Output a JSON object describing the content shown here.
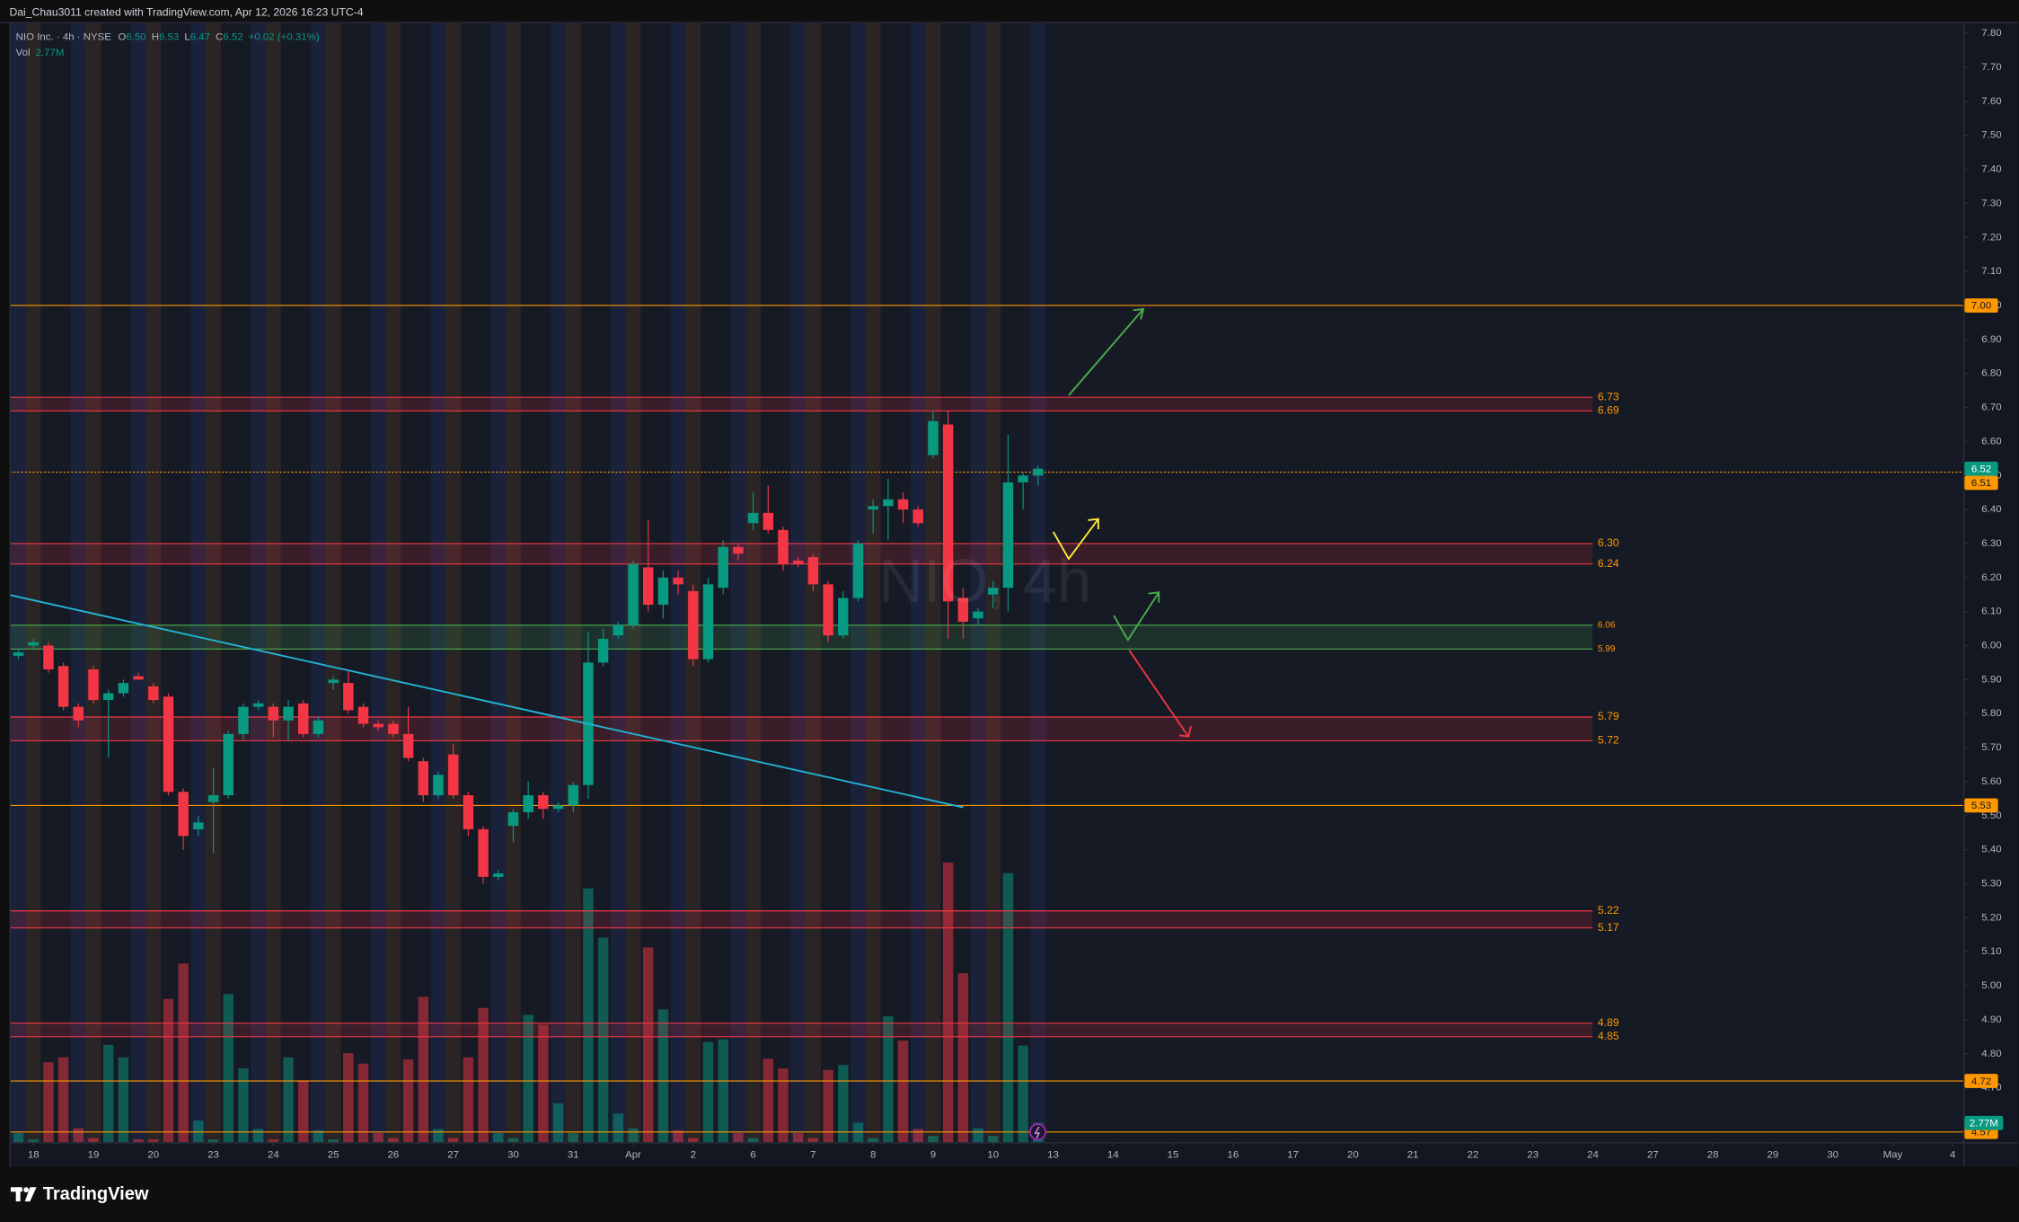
{
  "chart_data": {
    "type": "candlestick",
    "credit": "Dai_Chau3011 created with TradingView.com, Apr 12, 2026 16:23 UTC-4",
    "symbol": "NIO Inc. · 4h · NYSE",
    "legend": [
      {
        "key": "O",
        "value": "6.50"
      },
      {
        "key": "H",
        "value": "6.53"
      },
      {
        "key": "L",
        "value": "6.47"
      },
      {
        "key": "C",
        "value": "6.52"
      }
    ],
    "change": "+0.02 (+0.31%)",
    "volume_legend": {
      "key": "Vol",
      "value": "2.77M"
    },
    "watermark": "NIO, 4h",
    "brand": "TradingView",
    "up_color": "#089981",
    "down_color": "#f23645",
    "x": [
      0,
      1,
      2,
      3,
      4,
      5,
      6,
      7,
      8,
      9,
      10,
      11,
      12,
      13,
      14,
      15,
      16,
      17,
      18,
      19,
      20,
      21,
      22,
      23,
      24,
      25,
      26,
      27,
      28,
      29,
      30,
      31,
      32,
      33,
      34,
      35,
      36,
      37,
      38,
      39,
      40,
      41,
      42,
      43,
      44,
      45,
      46,
      47,
      48,
      49,
      50,
      51,
      52,
      53,
      54,
      55,
      56,
      57,
      58,
      59,
      60,
      61,
      62,
      63,
      64,
      65,
      66,
      67,
      68
    ],
    "open": [
      5.97,
      6.0,
      6.0,
      5.94,
      5.82,
      5.93,
      5.84,
      5.86,
      5.91,
      5.88,
      5.85,
      5.57,
      5.46,
      5.54,
      5.56,
      5.74,
      5.82,
      5.82,
      5.78,
      5.83,
      5.74,
      5.89,
      5.89,
      5.82,
      5.77,
      5.77,
      5.74,
      5.66,
      5.56,
      5.68,
      5.56,
      5.46,
      5.32,
      5.47,
      5.51,
      5.56,
      5.52,
      5.53,
      5.59,
      5.95,
      6.03,
      6.06,
      6.23,
      6.12,
      6.2,
      6.16,
      5.96,
      6.17,
      6.29,
      6.36,
      6.39,
      6.34,
      6.25,
      6.26,
      6.18,
      6.03,
      6.14,
      6.4,
      6.41,
      6.43,
      6.4,
      6.56,
      6.65,
      6.14,
      6.08,
      6.15,
      6.17,
      6.48,
      6.5
    ],
    "high": [
      5.99,
      6.02,
      6.01,
      5.95,
      5.83,
      5.94,
      5.87,
      5.9,
      5.92,
      5.89,
      5.86,
      5.58,
      5.5,
      5.64,
      5.75,
      5.83,
      5.84,
      5.83,
      5.84,
      5.84,
      5.79,
      5.91,
      5.93,
      5.83,
      5.78,
      5.78,
      5.82,
      5.67,
      5.63,
      5.71,
      5.57,
      5.47,
      5.34,
      5.52,
      5.6,
      5.57,
      5.54,
      5.6,
      6.04,
      6.05,
      6.07,
      6.25,
      6.37,
      6.22,
      6.22,
      6.18,
      6.2,
      6.31,
      6.3,
      6.45,
      6.47,
      6.35,
      6.26,
      6.27,
      6.19,
      6.16,
      6.31,
      6.43,
      6.49,
      6.45,
      6.41,
      6.69,
      6.69,
      6.17,
      6.11,
      6.19,
      6.62,
      6.51,
      6.53
    ],
    "low": [
      5.96,
      5.99,
      5.92,
      5.81,
      5.76,
      5.83,
      5.67,
      5.85,
      5.9,
      5.83,
      5.56,
      5.4,
      5.44,
      5.39,
      5.55,
      5.72,
      5.81,
      5.73,
      5.72,
      5.73,
      5.73,
      5.87,
      5.8,
      5.76,
      5.75,
      5.73,
      5.66,
      5.54,
      5.55,
      5.55,
      5.44,
      5.3,
      5.31,
      5.42,
      5.49,
      5.49,
      5.51,
      5.51,
      5.55,
      5.94,
      6.02,
      6.05,
      6.1,
      6.08,
      6.15,
      5.94,
      5.95,
      6.15,
      6.25,
      6.34,
      6.33,
      6.22,
      6.23,
      6.16,
      6.01,
      6.02,
      6.13,
      6.33,
      6.31,
      6.36,
      6.35,
      6.55,
      6.02,
      6.02,
      6.06,
      6.11,
      6.1,
      6.4,
      6.47
    ],
    "close": [
      5.98,
      6.01,
      5.93,
      5.82,
      5.78,
      5.84,
      5.86,
      5.89,
      5.9,
      5.84,
      5.57,
      5.44,
      5.48,
      5.56,
      5.74,
      5.82,
      5.83,
      5.78,
      5.82,
      5.74,
      5.78,
      5.9,
      5.81,
      5.77,
      5.76,
      5.74,
      5.67,
      5.56,
      5.62,
      5.56,
      5.46,
      5.32,
      5.33,
      5.51,
      5.56,
      5.52,
      5.53,
      5.59,
      5.95,
      6.02,
      6.06,
      6.24,
      6.12,
      6.2,
      6.18,
      5.96,
      6.18,
      6.29,
      6.27,
      6.39,
      6.34,
      6.24,
      6.24,
      6.18,
      6.03,
      6.14,
      6.3,
      6.41,
      6.43,
      6.4,
      6.36,
      6.66,
      6.13,
      6.07,
      6.1,
      6.17,
      6.48,
      6.5,
      6.52
    ],
    "volume": [
      1.3,
      0.4,
      11.5,
      12.2,
      2,
      0.6,
      14,
      12.2,
      0.4,
      0.4,
      20.6,
      25.7,
      3.1,
      0.4,
      21.3,
      10.6,
      1.9,
      0.4,
      12.2,
      8.9,
      1.7,
      0.4,
      12.8,
      11.3,
      1.3,
      0.6,
      11.9,
      20.9,
      1.9,
      0.6,
      12.2,
      19.3,
      1.3,
      0.6,
      18.3,
      16.9,
      5.6,
      1.3,
      36.5,
      29.4,
      4.1,
      2,
      28,
      19.1,
      1.7,
      0.6,
      14.4,
      14.8,
      1.3,
      0.6,
      12,
      10.6,
      1.3,
      0.6,
      10.4,
      11.1,
      2.8,
      0.6,
      18.1,
      14.6,
      1.9,
      0.9,
      40.2,
      24.3,
      2,
      0.9,
      38.7,
      13.9,
      2.77
    ],
    "xlim": [
      -0.6,
      129.7
    ],
    "xticks": [
      {
        "value": 1,
        "label": "18"
      },
      {
        "value": 5,
        "label": "19"
      },
      {
        "value": 9,
        "label": "20"
      },
      {
        "value": 13,
        "label": "23"
      },
      {
        "value": 17,
        "label": "24"
      },
      {
        "value": 21,
        "label": "25"
      },
      {
        "value": 25,
        "label": "26"
      },
      {
        "value": 29,
        "label": "27"
      },
      {
        "value": 33,
        "label": "30"
      },
      {
        "value": 37,
        "label": "31"
      },
      {
        "value": 41,
        "label": "Apr"
      },
      {
        "value": 45,
        "label": "2"
      },
      {
        "value": 49,
        "label": "6"
      },
      {
        "value": 53,
        "label": "7"
      },
      {
        "value": 57,
        "label": "8"
      },
      {
        "value": 61,
        "label": "9"
      },
      {
        "value": 65,
        "label": "10"
      },
      {
        "value": 69,
        "label": "13"
      },
      {
        "value": 73,
        "label": "14"
      },
      {
        "value": 77,
        "label": "15"
      },
      {
        "value": 81,
        "label": "16"
      },
      {
        "value": 85,
        "label": "17"
      },
      {
        "value": 89,
        "label": "20"
      },
      {
        "value": 93,
        "label": "21"
      },
      {
        "value": 97,
        "label": "22"
      },
      {
        "value": 101,
        "label": "23"
      },
      {
        "value": 105,
        "label": "24"
      },
      {
        "value": 109,
        "label": "27"
      },
      {
        "value": 113,
        "label": "28"
      },
      {
        "value": 117,
        "label": "29"
      },
      {
        "value": 121,
        "label": "30"
      },
      {
        "value": 125,
        "label": "May"
      },
      {
        "value": 129,
        "label": "4"
      }
    ],
    "ylim": [
      4.54,
      7.83
    ],
    "yticks": [
      {
        "value": 7.8,
        "label": "7.80"
      },
      {
        "value": 7.7,
        "label": "7.70"
      },
      {
        "value": 7.6,
        "label": "7.60"
      },
      {
        "value": 7.5,
        "label": "7.50"
      },
      {
        "value": 7.4,
        "label": "7.40"
      },
      {
        "value": 7.3,
        "label": "7.30"
      },
      {
        "value": 7.2,
        "label": "7.20"
      },
      {
        "value": 7.1,
        "label": "7.10"
      },
      {
        "value": 7.0,
        "label": "7.00"
      },
      {
        "value": 6.9,
        "label": "6.90"
      },
      {
        "value": 6.8,
        "label": "6.80"
      },
      {
        "value": 6.7,
        "label": "6.70"
      },
      {
        "value": 6.6,
        "label": "6.60"
      },
      {
        "value": 6.5,
        "label": "6.50"
      },
      {
        "value": 6.4,
        "label": "6.40"
      },
      {
        "value": 6.3,
        "label": "6.30"
      },
      {
        "value": 6.2,
        "label": "6.20"
      },
      {
        "value": 6.1,
        "label": "6.10"
      },
      {
        "value": 6.0,
        "label": "6.00"
      },
      {
        "value": 5.9,
        "label": "5.90"
      },
      {
        "value": 5.8,
        "label": "5.80"
      },
      {
        "value": 5.7,
        "label": "5.70"
      },
      {
        "value": 5.6,
        "label": "5.60"
      },
      {
        "value": 5.5,
        "label": "5.50"
      },
      {
        "value": 5.4,
        "label": "5.40"
      },
      {
        "value": 5.3,
        "label": "5.30"
      },
      {
        "value": 5.2,
        "label": "5.20"
      },
      {
        "value": 5.1,
        "label": "5.10"
      },
      {
        "value": 5.0,
        "label": "5.00"
      },
      {
        "value": 4.9,
        "label": "4.90"
      },
      {
        "value": 4.8,
        "label": "4.80"
      },
      {
        "value": 4.7,
        "label": "4.70"
      }
    ],
    "zones": [
      {
        "top": {
          "value": 6.73,
          "label": "6.73"
        },
        "bottom": {
          "value": 6.69,
          "label": "6.69"
        },
        "color": "#f23645"
      },
      {
        "top": {
          "value": 6.3,
          "label": "6.30"
        },
        "bottom": {
          "value": 6.24,
          "label": "6.24"
        },
        "color": "#f23645"
      },
      {
        "top": {
          "value": 6.06,
          "label": "6.06"
        },
        "bottom": {
          "value": 5.99,
          "label": "5.99"
        },
        "color": "#4caf50"
      },
      {
        "top": {
          "value": 5.79,
          "label": "5.79"
        },
        "bottom": {
          "value": 5.72,
          "label": "5.72"
        },
        "color": "#f23645"
      },
      {
        "top": {
          "value": 5.22,
          "label": "5.22"
        },
        "bottom": {
          "value": 5.17,
          "label": "5.17"
        },
        "color": "#f23645"
      },
      {
        "top": {
          "value": 4.89,
          "label": "4.89"
        },
        "bottom": {
          "value": 4.85,
          "label": "4.85"
        },
        "color": "#f23645"
      }
    ],
    "levels": [
      {
        "value": 7.0,
        "label": "7.00",
        "color": "#ff9800"
      },
      {
        "value": 6.51,
        "label": "6.51",
        "color": "#ff9800"
      },
      {
        "value": 5.53,
        "label": "5.53",
        "color": "#ff9800"
      },
      {
        "value": 4.72,
        "label": "4.72",
        "color": "#ff9800"
      },
      {
        "value": 4.57,
        "label": "4.57",
        "color": "#ff9800"
      }
    ],
    "last_price": {
      "value": 6.52,
      "label": "6.52",
      "color": "#089981"
    }
  }
}
